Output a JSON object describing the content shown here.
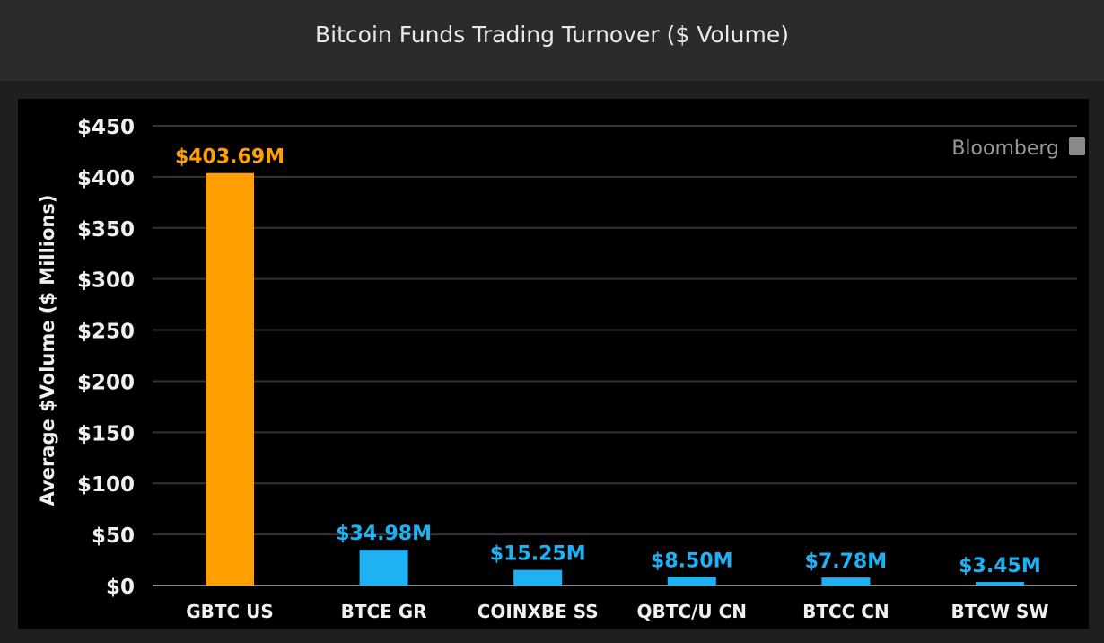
{
  "title": "Bitcoin Funds Trading Turnover ($ Volume)",
  "watermark": "Bloomberg",
  "chart_data": {
    "type": "bar",
    "title": "Bitcoin Funds Trading Turnover ($ Volume)",
    "xlabel": "",
    "ylabel": "Average  $Volume ($ Millions)",
    "ylim": [
      0,
      450
    ],
    "yticks": [
      0,
      50,
      100,
      150,
      200,
      250,
      300,
      350,
      400,
      450
    ],
    "ytick_labels": [
      "$0",
      "$50",
      "$100",
      "$150",
      "$200",
      "$250",
      "$300",
      "$350",
      "$400",
      "$450"
    ],
    "grid": true,
    "categories": [
      "GBTC US",
      "BTCE GR",
      "COINXBE SS",
      "QBTC/U CN",
      "BTCC CN",
      "BTCW SW"
    ],
    "values": [
      403.69,
      34.98,
      15.25,
      8.5,
      7.78,
      3.45
    ],
    "data_labels": [
      "$403.69M",
      "$34.98M",
      "$15.25M",
      "$8.50M",
      "$7.78M",
      "$3.45M"
    ],
    "colors": [
      "#ffa000",
      "#1eb2f5",
      "#1eb2f5",
      "#1eb2f5",
      "#1eb2f5",
      "#1eb2f5"
    ]
  }
}
